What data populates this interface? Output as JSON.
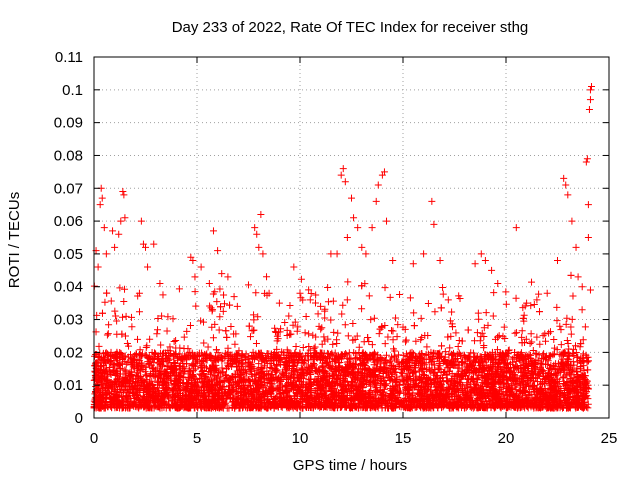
{
  "chart_data": {
    "type": "scatter",
    "title": "Day 233 of 2022, Rate Of TEC Index for receiver sthg",
    "xlabel": "GPS time / hours",
    "ylabel": "ROTI / TECUs",
    "xlim": [
      0,
      25
    ],
    "ylim": [
      0,
      0.11
    ],
    "xticks": [
      0,
      5,
      10,
      15,
      20,
      25
    ],
    "xtick_labels": [
      "0",
      "5",
      "10",
      "15",
      "20",
      "25"
    ],
    "yticks": [
      0,
      0.01,
      0.02,
      0.03,
      0.04,
      0.05,
      0.06,
      0.07,
      0.08,
      0.09,
      0.1,
      0.11
    ],
    "ytick_labels": [
      "0",
      "0.01",
      "0.02",
      "0.03",
      "0.04",
      "0.05",
      "0.06",
      "0.07",
      "0.08",
      "0.09",
      "0.1",
      "0.11"
    ],
    "grid": true,
    "marker": "+",
    "color": "#ff0000",
    "series": [
      {
        "name": "ROTI",
        "bulk_band": {
          "x_range": [
            0,
            24
          ],
          "typical_y": [
            0.003,
            0.02
          ],
          "median_y": 0.01
        },
        "points": [
          [
            0.1,
            0.051
          ],
          [
            0.2,
            0.046
          ],
          [
            0.3,
            0.065
          ],
          [
            0.35,
            0.07
          ],
          [
            0.4,
            0.067
          ],
          [
            0.5,
            0.058
          ],
          [
            0.6,
            0.05
          ],
          [
            0.9,
            0.057
          ],
          [
            1.0,
            0.052
          ],
          [
            1.2,
            0.056
          ],
          [
            1.3,
            0.06
          ],
          [
            1.4,
            0.069
          ],
          [
            1.45,
            0.068
          ],
          [
            1.5,
            0.061
          ],
          [
            2.3,
            0.06
          ],
          [
            2.4,
            0.053
          ],
          [
            2.5,
            0.052
          ],
          [
            2.6,
            0.046
          ],
          [
            2.9,
            0.053
          ],
          [
            3.2,
            0.041
          ],
          [
            4.7,
            0.049
          ],
          [
            4.8,
            0.048
          ],
          [
            4.9,
            0.043
          ],
          [
            5.2,
            0.046
          ],
          [
            5.6,
            0.041
          ],
          [
            5.8,
            0.057
          ],
          [
            6.0,
            0.051
          ],
          [
            6.2,
            0.044
          ],
          [
            6.5,
            0.043
          ],
          [
            6.8,
            0.037
          ],
          [
            7.8,
            0.058
          ],
          [
            7.9,
            0.056
          ],
          [
            8.0,
            0.052
          ],
          [
            8.1,
            0.062
          ],
          [
            8.2,
            0.05
          ],
          [
            8.5,
            0.038
          ],
          [
            9.0,
            0.035
          ],
          [
            9.7,
            0.046
          ],
          [
            10.0,
            0.038
          ],
          [
            10.5,
            0.036
          ],
          [
            11.0,
            0.034
          ],
          [
            11.5,
            0.05
          ],
          [
            11.8,
            0.05
          ],
          [
            12.0,
            0.074
          ],
          [
            12.1,
            0.076
          ],
          [
            12.2,
            0.072
          ],
          [
            12.3,
            0.055
          ],
          [
            12.5,
            0.067
          ],
          [
            12.6,
            0.061
          ],
          [
            12.8,
            0.058
          ],
          [
            13.0,
            0.052
          ],
          [
            13.2,
            0.05
          ],
          [
            13.5,
            0.058
          ],
          [
            13.7,
            0.066
          ],
          [
            13.8,
            0.071
          ],
          [
            14.0,
            0.074
          ],
          [
            14.1,
            0.075
          ],
          [
            14.2,
            0.06
          ],
          [
            14.5,
            0.048
          ],
          [
            15.5,
            0.047
          ],
          [
            16.0,
            0.05
          ],
          [
            16.4,
            0.066
          ],
          [
            16.5,
            0.059
          ],
          [
            16.8,
            0.048
          ],
          [
            17.2,
            0.036
          ],
          [
            18.5,
            0.047
          ],
          [
            18.8,
            0.05
          ],
          [
            19.0,
            0.048
          ],
          [
            19.3,
            0.045
          ],
          [
            19.6,
            0.041
          ],
          [
            20.5,
            0.058
          ],
          [
            21.0,
            0.035
          ],
          [
            21.5,
            0.036
          ],
          [
            22.0,
            0.038
          ],
          [
            22.5,
            0.048
          ],
          [
            22.8,
            0.073
          ],
          [
            22.9,
            0.071
          ],
          [
            23.0,
            0.068
          ],
          [
            23.2,
            0.06
          ],
          [
            23.4,
            0.052
          ],
          [
            23.5,
            0.043
          ],
          [
            23.7,
            0.04
          ],
          [
            23.9,
            0.078
          ],
          [
            23.95,
            0.079
          ],
          [
            24.0,
            0.065
          ],
          [
            24.0,
            0.055
          ],
          [
            24.05,
            0.094
          ],
          [
            24.1,
            0.097
          ],
          [
            24.1,
            0.1
          ],
          [
            24.15,
            0.101
          ],
          [
            24.1,
            0.039
          ]
        ]
      }
    ]
  }
}
